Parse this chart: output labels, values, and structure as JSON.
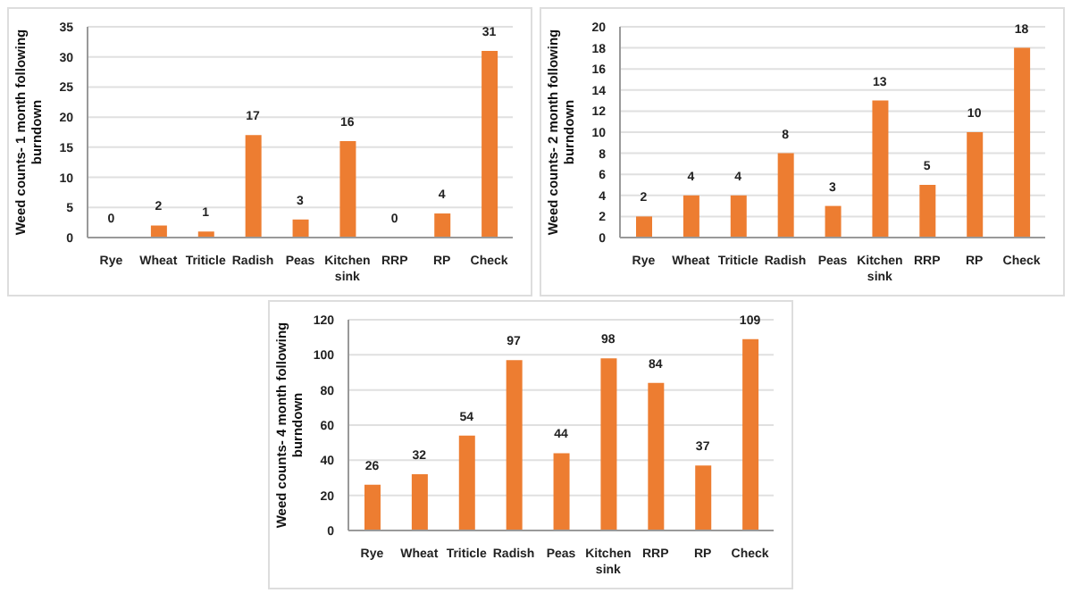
{
  "chart_data": [
    {
      "type": "bar",
      "ylabel": "Weed counts- 1 month following burndown",
      "categories": [
        "Rye",
        "Wheat",
        "Triticle",
        "Radish",
        "Peas",
        "Kitchen sink",
        "RRP",
        "RP",
        "Check"
      ],
      "values": [
        0,
        2,
        1,
        17,
        3,
        16,
        0,
        4,
        31
      ],
      "color": "#ed7d31",
      "ylim": [
        0,
        35
      ],
      "yticks": [
        0,
        5,
        10,
        15,
        20,
        25,
        30,
        35
      ],
      "grid": "y",
      "data_labels": true
    },
    {
      "type": "bar",
      "ylabel": "Weed counts- 2 month following burndown",
      "categories": [
        "Rye",
        "Wheat",
        "Triticle",
        "Radish",
        "Peas",
        "Kitchen sink",
        "RRP",
        "RP",
        "Check"
      ],
      "values": [
        2,
        4,
        4,
        8,
        3,
        13,
        5,
        10,
        18
      ],
      "color": "#ed7d31",
      "ylim": [
        0,
        20
      ],
      "yticks": [
        0,
        2,
        4,
        6,
        8,
        10,
        12,
        14,
        16,
        18,
        20
      ],
      "grid": "y",
      "data_labels": true
    },
    {
      "type": "bar",
      "ylabel": "Weed counts- 4 month following burndown",
      "categories": [
        "Rye",
        "Wheat",
        "Triticle",
        "Radish",
        "Peas",
        "Kitchen sink",
        "RRP",
        "RP",
        "Check"
      ],
      "values": [
        26,
        32,
        54,
        97,
        44,
        98,
        84,
        37,
        109
      ],
      "color": "#ed7d31",
      "ylim": [
        0,
        120
      ],
      "yticks": [
        0,
        20,
        40,
        60,
        80,
        100,
        120
      ],
      "grid": "y",
      "data_labels": true
    }
  ]
}
